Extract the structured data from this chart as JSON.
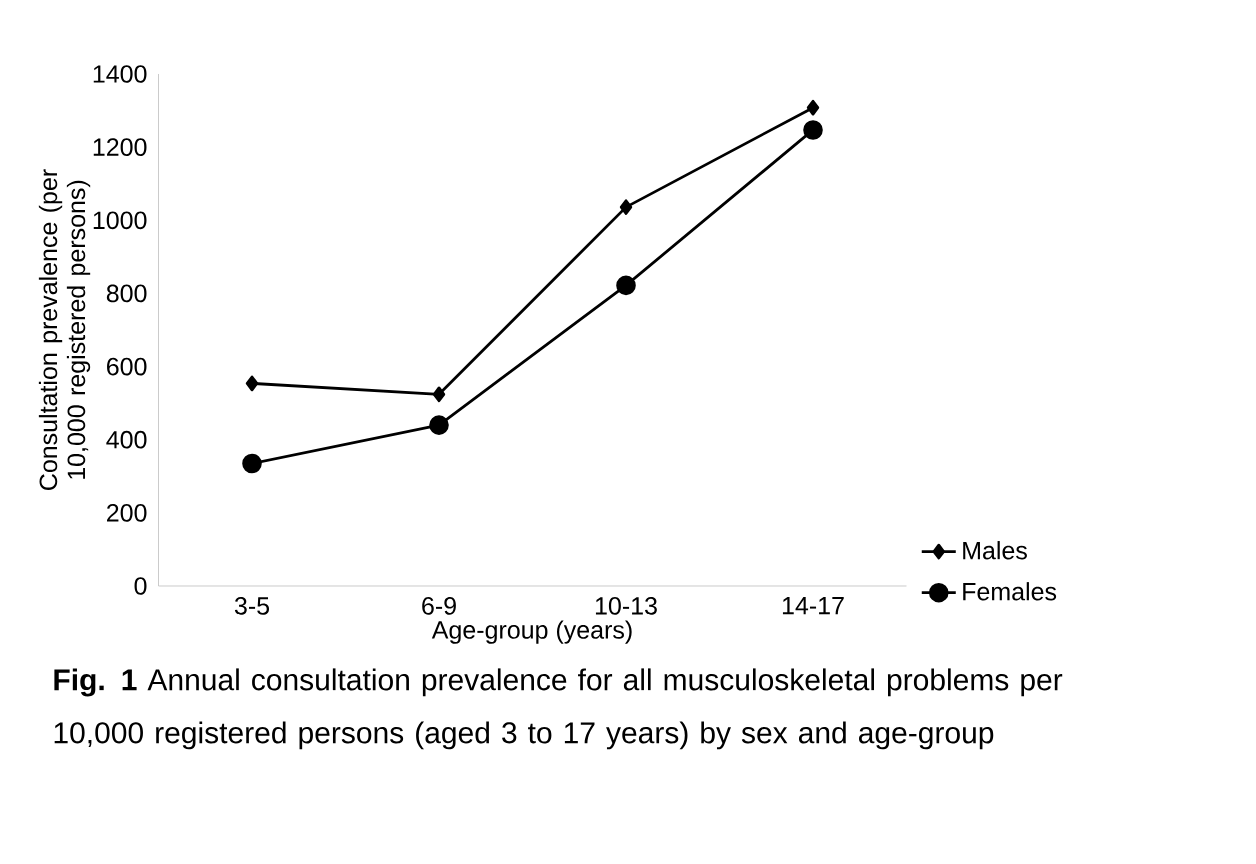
{
  "chart_data": {
    "type": "line",
    "categories": [
      "3-5",
      "6-9",
      "10-13",
      "14-17"
    ],
    "series": [
      {
        "name": "Males",
        "color": "#000000",
        "marker": "diamond",
        "values": [
          554,
          524,
          1036,
          1308
        ]
      },
      {
        "name": "Females",
        "color": "#000000",
        "marker": "circle",
        "values": [
          335,
          440,
          822,
          1247
        ]
      }
    ],
    "xlabel": "Age-group (years)",
    "ylabel": "Consultation prevalence (per 10,000 registered persons)",
    "ylim": [
      0,
      1400
    ],
    "yticks": [
      0,
      200,
      400,
      600,
      800,
      1000,
      1200,
      1400
    ],
    "grid": false,
    "legend": "bottom right",
    "line_style": "solid",
    "annotations": [
      "**Fig. 1** Annual consultation prevalence for all musculoskeletal problems per 10,000 registered persons (aged 3 to 17 years) by sex and age-group"
    ]
  }
}
